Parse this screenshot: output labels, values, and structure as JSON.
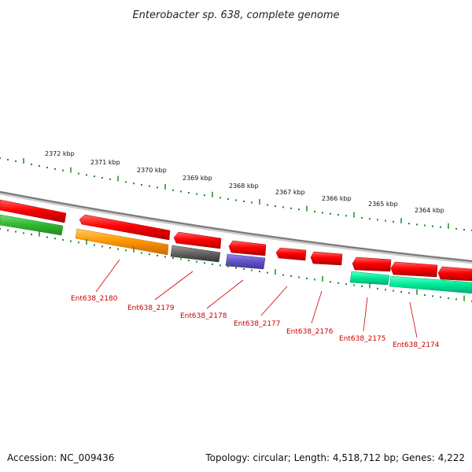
{
  "title": "Enterobacter sp. 638, complete genome",
  "footer": {
    "accession": "Accession: NC_009436",
    "summary": "Topology: circular; Length: 4,518,712 bp; Genes: 4,222"
  },
  "scale_labels": [
    "2372 kbp",
    "2371 kbp",
    "2370 kbp",
    "2369 kbp",
    "2368 kbp",
    "2367 kbp",
    "2366 kbp",
    "2365 kbp",
    "2364 kbp"
  ],
  "gene_labels": [
    "Ent638_2180",
    "Ent638_2179",
    "Ent638_2178",
    "Ent638_2177",
    "Ent638_2176",
    "Ent638_2175",
    "Ent638_2174"
  ],
  "colors": {
    "forward_cds": "#ff0000",
    "orange_cds": "#ff9900",
    "gray_cds": "#666666",
    "purple_cds": "#6655cc",
    "teal_cds": "#00ee99",
    "green_cds": "#33bb33",
    "backbone": "#888888",
    "ticks": "#228822",
    "label": "#cc0000"
  }
}
